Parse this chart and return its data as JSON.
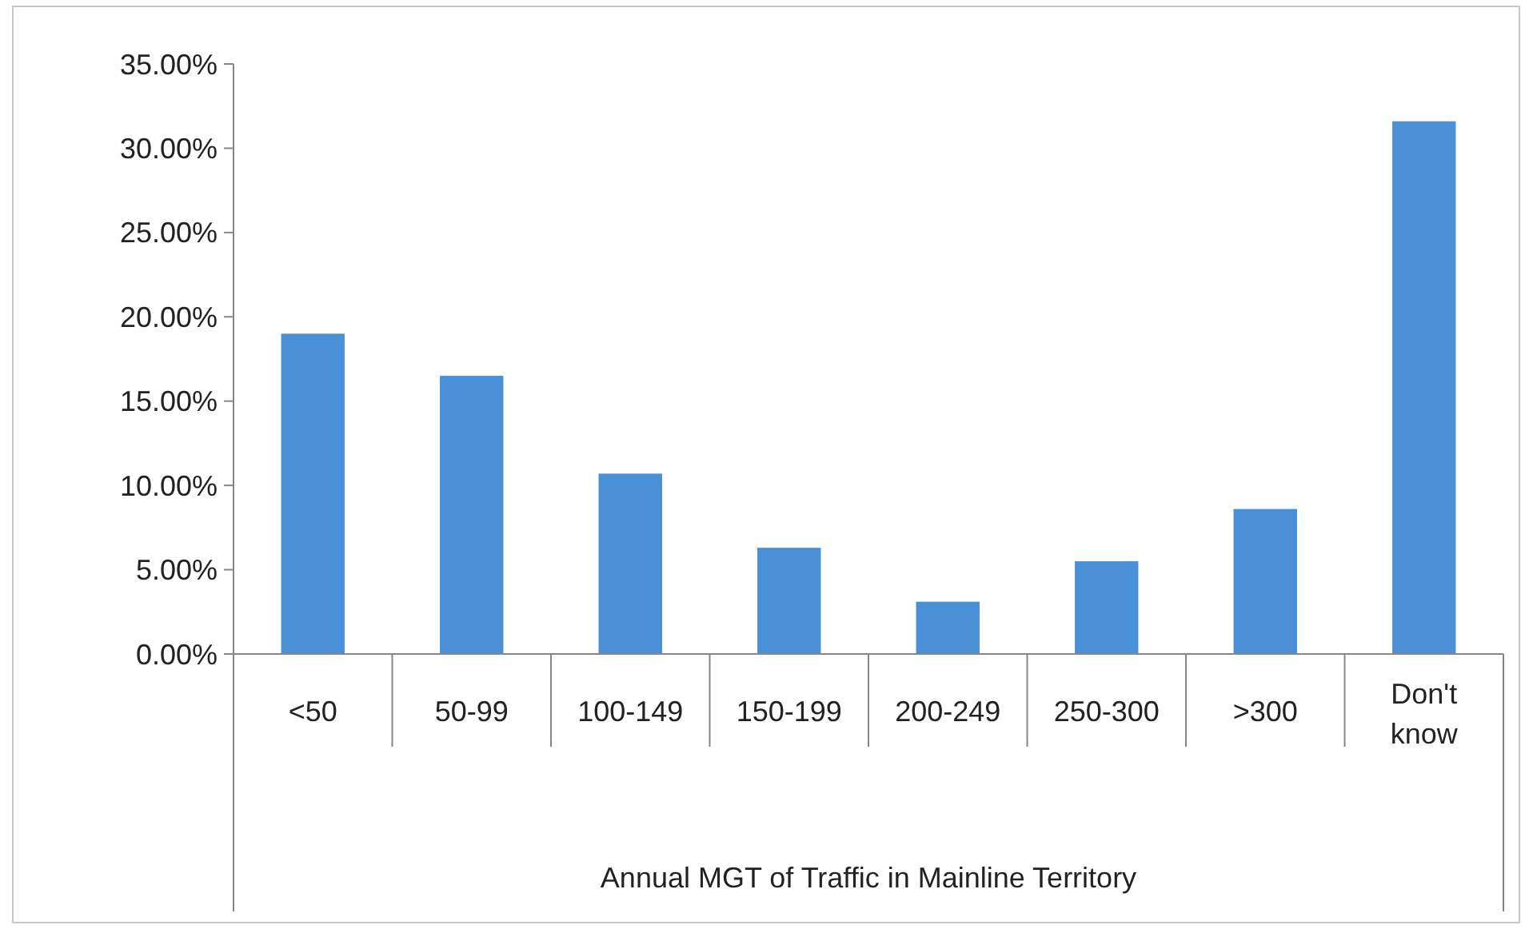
{
  "chart_data": {
    "type": "bar",
    "xlabel": "Annual MGT of Traffic in Mainline Territory",
    "categories": [
      "<50",
      "50-99",
      "100-149",
      "150-199",
      "200-249",
      "250-300",
      ">300",
      "Don't know"
    ],
    "values": [
      19.0,
      16.5,
      10.7,
      6.3,
      3.1,
      5.5,
      8.6,
      31.6
    ],
    "color": "#4a90d9",
    "ylim": [
      0,
      35
    ],
    "yticks": [
      {
        "value": 0,
        "label": "0.00%"
      },
      {
        "value": 5,
        "label": "5.00%"
      },
      {
        "value": 10,
        "label": "10.00%"
      },
      {
        "value": 15,
        "label": "15.00%"
      },
      {
        "value": 20,
        "label": "20.00%"
      },
      {
        "value": 25,
        "label": "25.00%"
      },
      {
        "value": 30,
        "label": "30.00%"
      },
      {
        "value": 35,
        "label": "35.00%"
      }
    ],
    "grid": false
  }
}
